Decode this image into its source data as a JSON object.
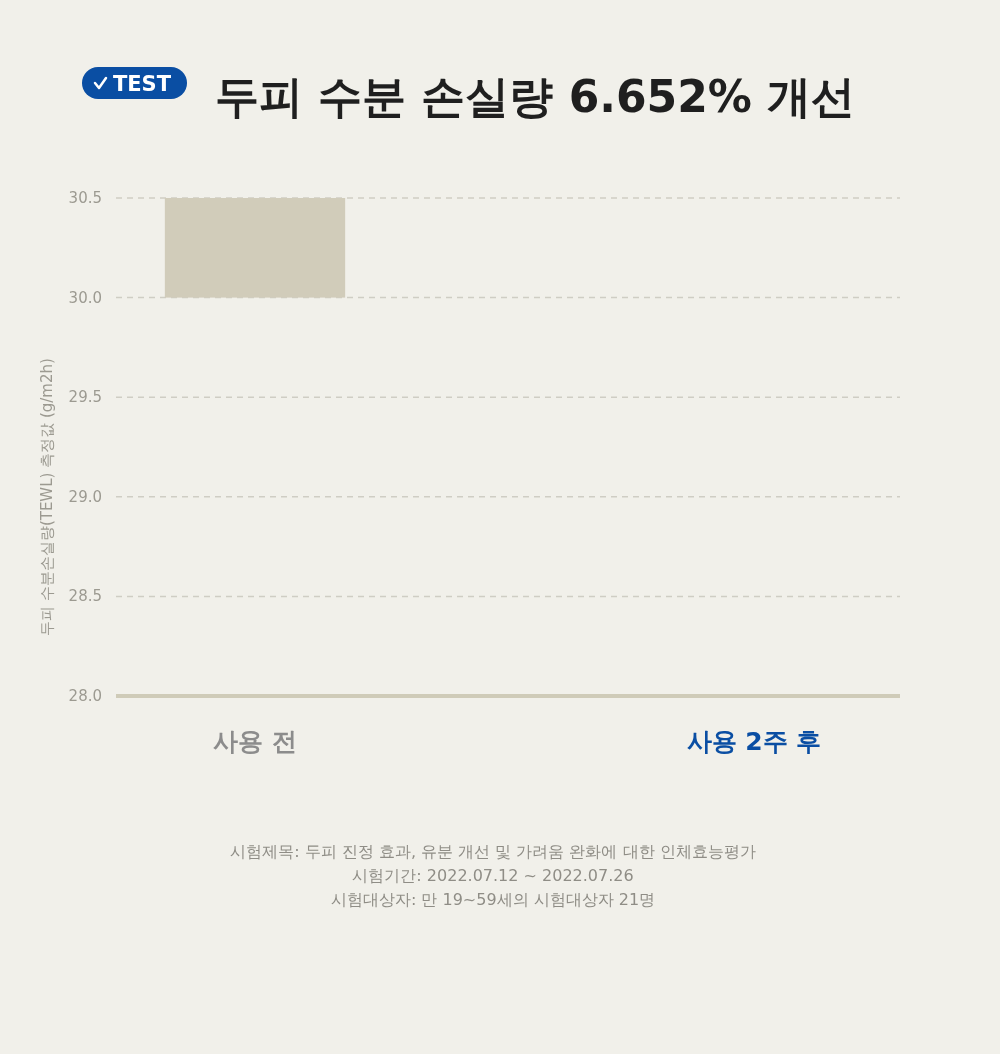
{
  "chart_data": {
    "type": "bar",
    "title": "두피 수분 손실량 6.652% 개선",
    "ylabel": "두피 수분손실량(TEWL) 측정값 (g/m2h)",
    "categories": [
      "사용 전",
      "사용 2주 후"
    ],
    "values": [
      0.5,
      null
    ],
    "base": [
      30.0,
      null
    ],
    "color": "#d1ccba",
    "ylim": [
      28.0,
      30.5
    ],
    "yticks": [
      {
        "value": 28.0,
        "label": "28.0"
      },
      28.5,
      {
        "value": 29.0,
        "label": "29.0"
      },
      29.5,
      {
        "value": 30.0,
        "label": "30.0"
      },
      30.5
    ],
    "grid": "y",
    "annotations": [
      "TEST",
      "시험제목: 두피 진정 효과, 유분 개선 및 가려움 완화에 대한 인체효능평가",
      "시험기간: 2022.07.12 ~ 2022.07.26",
      "시험대상자: 만 19~59세의 시험대상자 21명"
    ]
  }
}
